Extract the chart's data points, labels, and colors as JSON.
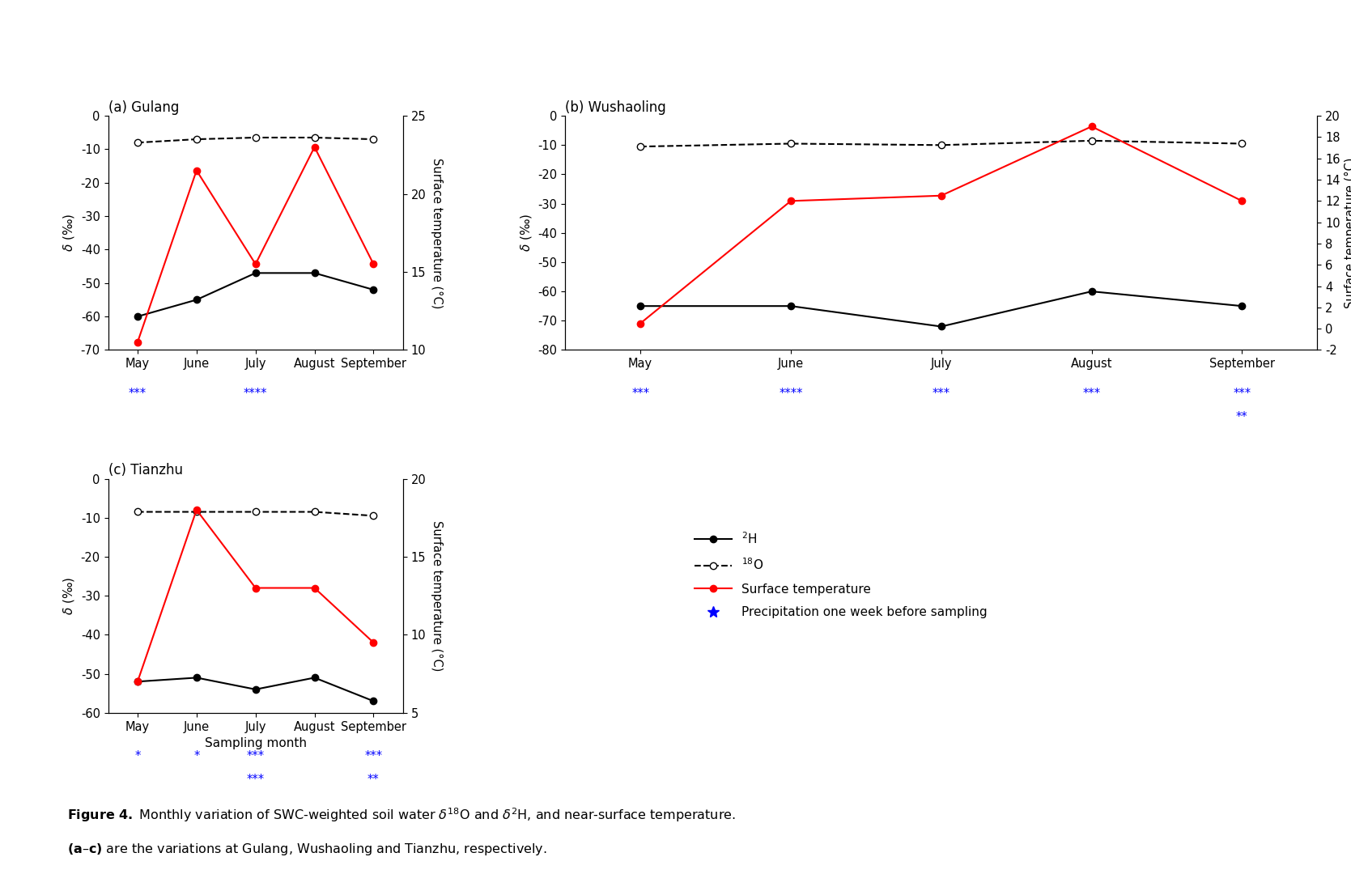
{
  "months": [
    "May",
    "June",
    "July",
    "August",
    "September"
  ],
  "month_x": [
    0,
    1,
    2,
    3,
    4
  ],
  "gulang": {
    "title": "(a) Gulang",
    "d2H": [
      -60,
      -55,
      -47,
      -47,
      -52
    ],
    "d18O": [
      -8.0,
      -7.0,
      -6.5,
      -6.5,
      -7.0
    ],
    "temp": [
      10.5,
      21.5,
      15.5,
      23.0,
      15.5
    ],
    "ylim_left": [
      -70,
      0
    ],
    "ylim_right": [
      10,
      25
    ],
    "yticks_left": [
      -70,
      -60,
      -50,
      -40,
      -30,
      -20,
      -10,
      0
    ],
    "yticks_right": [
      10,
      15,
      20,
      25
    ],
    "asterisks": [
      [
        "***"
      ],
      [],
      [
        "****"
      ],
      [],
      []
    ],
    "asterisk_row2": [
      [],
      [],
      [],
      [],
      []
    ]
  },
  "wushaoling": {
    "title": "(b) Wushaoling",
    "d2H": [
      -65,
      -65,
      -72,
      -60,
      -65
    ],
    "d18O": [
      -10.5,
      -9.5,
      -10.0,
      -8.5,
      -9.5
    ],
    "temp": [
      0.5,
      12.0,
      12.5,
      19.0,
      12.0
    ],
    "ylim_left": [
      -80,
      0
    ],
    "ylim_right": [
      -2,
      20
    ],
    "yticks_left": [
      -80,
      -70,
      -60,
      -50,
      -40,
      -30,
      -20,
      -10,
      0
    ],
    "yticks_right": [
      -2,
      0,
      2,
      4,
      6,
      8,
      10,
      12,
      14,
      16,
      18,
      20
    ],
    "asterisks": [
      [
        "***"
      ],
      [
        "****"
      ],
      [
        "***"
      ],
      [
        "***"
      ],
      [
        "***"
      ]
    ],
    "asterisk_row2": [
      [],
      [],
      [],
      [],
      [
        "**"
      ]
    ]
  },
  "tianzhu": {
    "title": "(c) Tianzhu",
    "d2H": [
      -52,
      -51,
      -54,
      -51,
      -57
    ],
    "d18O": [
      -8.5,
      -8.5,
      -8.5,
      -8.5,
      -9.5
    ],
    "temp": [
      7.0,
      18.0,
      13.0,
      13.0,
      9.5
    ],
    "ylim_left": [
      -60,
      0
    ],
    "ylim_right": [
      5,
      20
    ],
    "yticks_left": [
      -60,
      -50,
      -40,
      -30,
      -20,
      -10,
      0
    ],
    "yticks_right": [
      5,
      10,
      15,
      20
    ],
    "asterisks": [
      [
        "*"
      ],
      [
        "*"
      ],
      [
        "***"
      ],
      [],
      [
        "***"
      ]
    ],
    "asterisk_row2": [
      [],
      [],
      [
        "***"
      ],
      [],
      [
        "**"
      ]
    ]
  },
  "xlabel": "Sampling month",
  "ylabel_left": "δ (‰)",
  "ylabel_right": "Surface temperature (°C)"
}
